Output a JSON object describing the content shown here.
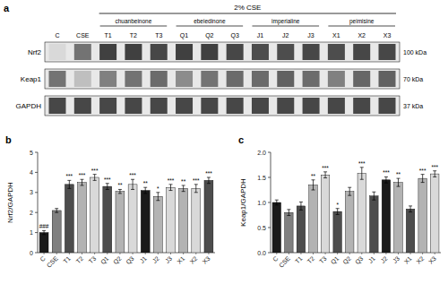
{
  "chart_data": [
    {
      "type": "blot",
      "panel_label": "a",
      "title": "2% CSE",
      "groups": [
        "chuanbeinone",
        "ebeiedinone",
        "imperialine",
        "peimisine"
      ],
      "categories": [
        "C",
        "CSE",
        "T1",
        "T2",
        "T3",
        "Q1",
        "Q2",
        "Q3",
        "J1",
        "J2",
        "J3",
        "X1",
        "X2",
        "X3"
      ],
      "series": [
        {
          "name": "Nrf2",
          "label": "100 kDa",
          "values": [
            0.85,
            0.45,
            0.25,
            0.25,
            0.28,
            0.25,
            0.25,
            0.28,
            0.3,
            0.3,
            0.28,
            0.3,
            0.28,
            0.28
          ]
        },
        {
          "name": "Keap1",
          "label": "70 kDa",
          "values": [
            0.45,
            0.75,
            0.5,
            0.45,
            0.42,
            0.55,
            0.45,
            0.42,
            0.42,
            0.38,
            0.42,
            0.5,
            0.4,
            0.38
          ]
        },
        {
          "name": "GAPDH",
          "label": "37 kDa",
          "values": [
            0.28,
            0.28,
            0.28,
            0.28,
            0.28,
            0.28,
            0.28,
            0.28,
            0.28,
            0.28,
            0.28,
            0.28,
            0.28,
            0.28
          ]
        }
      ]
    },
    {
      "type": "bar",
      "panel_label": "b",
      "categories": [
        "C",
        "CSE",
        "T1",
        "T2",
        "T3",
        "Q1",
        "Q2",
        "Q3",
        "J1",
        "J2",
        "J3",
        "X1",
        "X2",
        "X3"
      ],
      "values": [
        1.0,
        2.1,
        3.4,
        3.5,
        3.75,
        3.3,
        3.05,
        3.4,
        3.1,
        2.8,
        3.25,
        3.2,
        3.2,
        3.6
      ],
      "errors": [
        0.1,
        0.1,
        0.2,
        0.15,
        0.15,
        0.15,
        0.1,
        0.25,
        0.15,
        0.2,
        0.15,
        0.15,
        0.2,
        0.15
      ],
      "colors": [
        "#1a1a1a",
        "#808080",
        "#4d4d4d",
        "#b3b3b3",
        "#d9d9d9",
        "#4d4d4d",
        "#b3b3b3",
        "#d9d9d9",
        "#1a1a1a",
        "#b3b3b3",
        "#d9d9d9",
        "#b3b3b3",
        "#d9d9d9",
        "#4d4d4d"
      ],
      "annotations": [
        "###",
        null,
        "***",
        "***",
        "***",
        "***",
        "**",
        "***",
        "**",
        "*",
        "***",
        "**",
        "***",
        "***"
      ],
      "ylabel": "Nrf2/GAPDH",
      "ylim": [
        0,
        5
      ],
      "yticks": [
        0,
        1,
        2,
        3,
        4,
        5
      ]
    },
    {
      "type": "bar",
      "panel_label": "c",
      "categories": [
        "C",
        "CSE",
        "T1",
        "T2",
        "T3",
        "Q1",
        "Q2",
        "Q3",
        "J1",
        "J2",
        "J3",
        "X1",
        "X2",
        "X3"
      ],
      "values": [
        1.0,
        0.8,
        0.93,
        1.35,
        1.55,
        0.82,
        1.22,
        1.58,
        1.13,
        1.45,
        1.4,
        0.87,
        1.48,
        1.57
      ],
      "errors": [
        0.05,
        0.06,
        0.08,
        0.1,
        0.06,
        0.06,
        0.08,
        0.12,
        0.08,
        0.06,
        0.08,
        0.06,
        0.08,
        0.06
      ],
      "colors": [
        "#1a1a1a",
        "#808080",
        "#4d4d4d",
        "#b3b3b3",
        "#d9d9d9",
        "#4d4d4d",
        "#b3b3b3",
        "#d9d9d9",
        "#4d4d4d",
        "#1a1a1a",
        "#b3b3b3",
        "#4d4d4d",
        "#b3b3b3",
        "#d9d9d9"
      ],
      "annotations": [
        null,
        null,
        null,
        "**",
        "***",
        "*",
        null,
        "***",
        null,
        "***",
        "**",
        null,
        "***",
        "***"
      ],
      "ylabel": "Keap1/GAPDH",
      "ylim": [
        0,
        2.0
      ],
      "yticks": [
        {
          "value": 0,
          "label": "0.0"
        },
        0.5,
        {
          "value": 1,
          "label": "1.0"
        },
        1.5,
        {
          "value": 2,
          "label": "2.0"
        }
      ]
    }
  ]
}
